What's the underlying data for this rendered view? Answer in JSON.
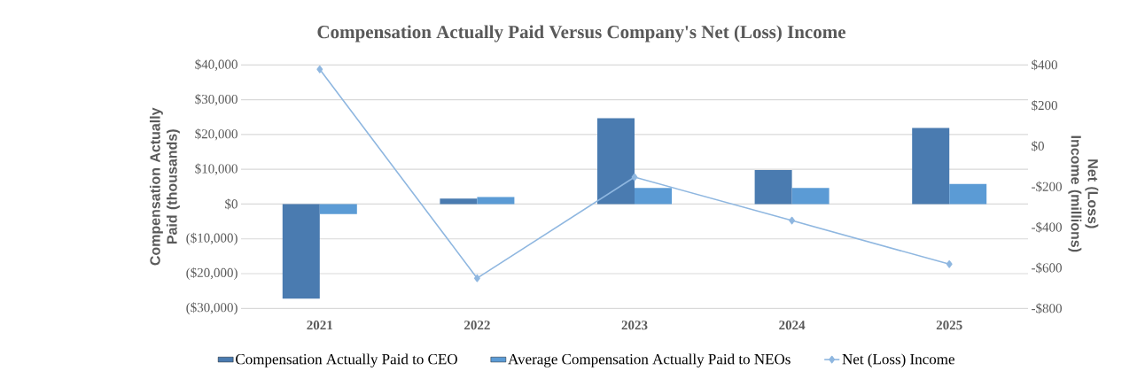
{
  "chart_data": {
    "type": "bar",
    "title": "Compensation Actually Paid Versus Company's Net (Loss) Income",
    "ylabel": "Compensation Actually Paid (thousands)",
    "y2label": "Net (Loss) Income (millions)",
    "categories": [
      "2021",
      "2022",
      "2023",
      "2024",
      "2025"
    ],
    "series": [
      {
        "name": "Compensation Actually Paid to CEO",
        "color": "#4a7bb0",
        "values": [
          -27200,
          1600,
          24700,
          9800,
          21900
        ]
      },
      {
        "name": "Average Compensation Actually Paid to NEOs",
        "color": "#5b9bd5",
        "values": [
          -2900,
          2000,
          4600,
          4600,
          5800
        ]
      },
      {
        "name": "Net (Loss) Income",
        "type": "line",
        "axis": "y2",
        "color": "#8fb7e0",
        "marker": "diamond",
        "values": [
          378,
          -651,
          -153,
          -367,
          -582
        ]
      }
    ],
    "ylim": [
      -30000,
      40000
    ],
    "yticks": [
      {
        "value": -30000,
        "label": "($30,000)"
      },
      {
        "value": -20000,
        "label": "($20,000)"
      },
      {
        "value": -10000,
        "label": "($10,000)"
      },
      {
        "value": 0,
        "label": "$0"
      },
      {
        "value": 10000,
        "label": "$10,000"
      },
      {
        "value": 20000,
        "label": "$20,000"
      },
      {
        "value": 30000,
        "label": "$30,000"
      },
      {
        "value": 40000,
        "label": "$40,000"
      }
    ],
    "y2lim": [
      -800,
      400
    ],
    "y2ticks": [
      {
        "value": -800,
        "label": "-$800"
      },
      {
        "value": -600,
        "label": "-$600"
      },
      {
        "value": -400,
        "label": "-$400"
      },
      {
        "value": -200,
        "label": "-$200"
      },
      {
        "value": 0,
        "label": "$0"
      },
      {
        "value": 200,
        "label": "$200"
      },
      {
        "value": 400,
        "label": "$400"
      }
    ],
    "grid": "y",
    "legend": "bottom"
  }
}
